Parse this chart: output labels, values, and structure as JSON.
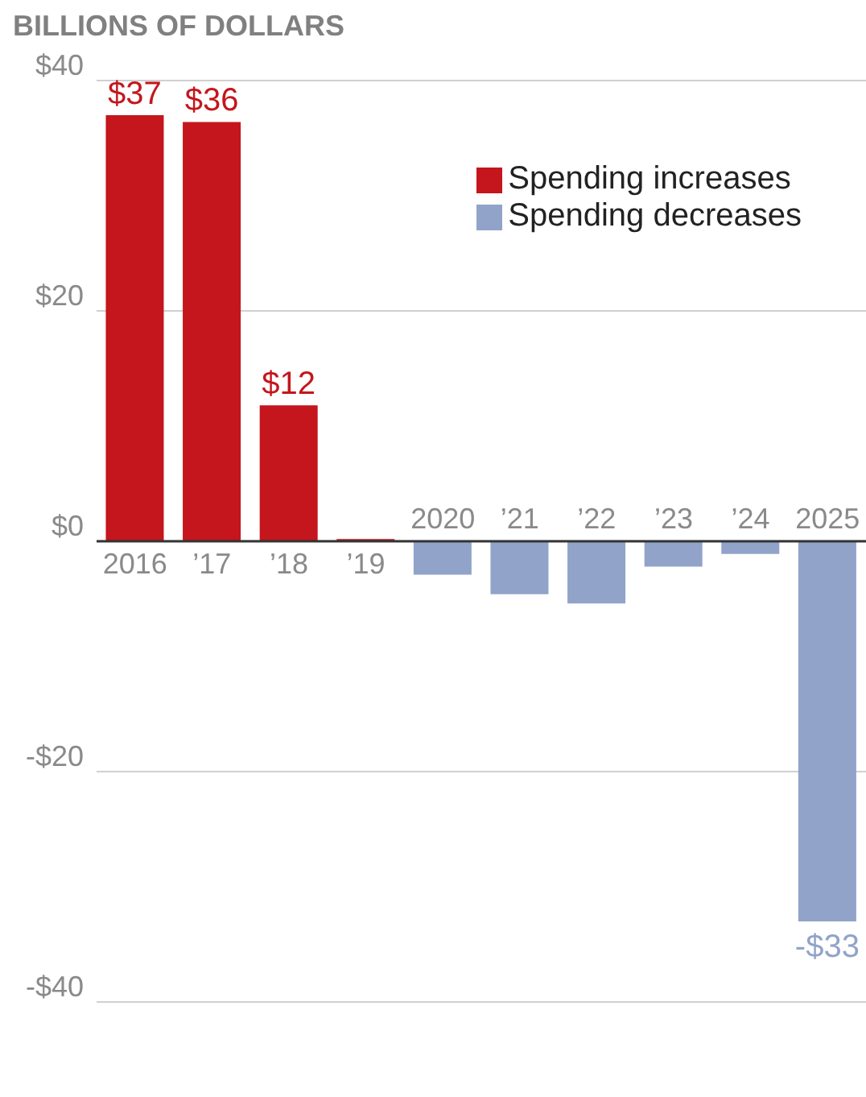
{
  "chart_data": {
    "type": "bar",
    "title": "BILLIONS OF DOLLARS",
    "categories": [
      "2016",
      "’17",
      "’18",
      "’19",
      "2020",
      "’21",
      "’22",
      "’23",
      "’24",
      "2025"
    ],
    "stacked": true,
    "series": [
      {
        "name": "Spending increases",
        "color": "#c4161c",
        "values": [
          37,
          36.4,
          11.8,
          0.2,
          null,
          null,
          null,
          null,
          null,
          null
        ],
        "value_labels": [
          "$37",
          "$36",
          "$12",
          null,
          null,
          null,
          null,
          null,
          null,
          null
        ]
      },
      {
        "name": "Spending decreases",
        "color": "#91a3c9",
        "values": [
          null,
          null,
          null,
          null,
          -2.9,
          -4.6,
          -5.4,
          -2.2,
          -1.1,
          -33
        ],
        "value_labels": [
          null,
          null,
          null,
          null,
          null,
          null,
          null,
          null,
          null,
          "-$33"
        ]
      }
    ],
    "ylim": [
      -40,
      40
    ],
    "yticks": [
      {
        "value": 40,
        "label": "$40"
      },
      {
        "value": 20,
        "label": "$20"
      },
      {
        "value": 0,
        "label": "$0"
      },
      {
        "value": -20,
        "label": "-$20"
      },
      {
        "value": -40,
        "label": "-$40"
      }
    ],
    "grid": "y",
    "legend": "top right"
  }
}
